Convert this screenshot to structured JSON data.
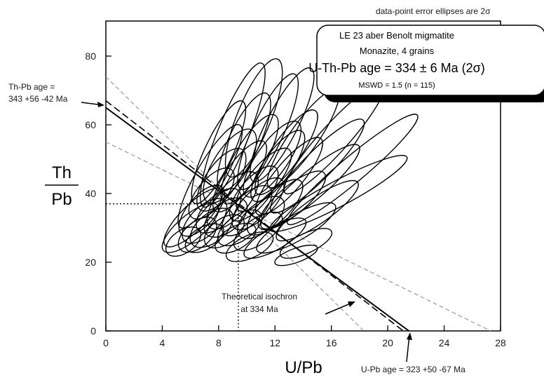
{
  "chart_data": {
    "type": "scatter",
    "title": "",
    "xlabel": "U/Pb",
    "ylabel_numerator": "Th",
    "ylabel_denominator": "Pb",
    "xlim": [
      0,
      28
    ],
    "ylim": [
      0,
      90
    ],
    "x_ticks": [
      0,
      4,
      8,
      12,
      16,
      20,
      24,
      28
    ],
    "y_ticks": [
      0,
      20,
      40,
      60,
      80
    ],
    "grid": false,
    "note": "data-point error ellipses are 2σ",
    "legend": {
      "position": "top-right",
      "line1": "LE 23 aber Benolt migmatite",
      "line2": "Monazite, 4 grains",
      "line3": "U-Th-Pb age = 334 ± 6 Ma (2σ)",
      "line4": "MSWD = 1.5 (n = 115)"
    },
    "annotations": {
      "thpb_age_line1": "Th-Pb age =",
      "thpb_age_line2": "343 +56 -42 Ma",
      "upb_age": "U-Pb age = 323 +50 -67 Ma",
      "isochron_line1": "Theoretical isochron",
      "isochron_line2": "at 334 Ma"
    },
    "isochron_fit": {
      "name": "U-Th-Pb age",
      "y_intercept": 65,
      "x_intercept": 21.5
    },
    "isochron_theoretical": {
      "y_intercept": 67,
      "x_intercept": 21.1
    },
    "error_envelope": [
      {
        "y_intercept": 74,
        "x_intercept": 18.3
      },
      {
        "y_intercept": 55,
        "x_intercept": 27.3
      }
    ],
    "centroid": {
      "x": 9.4,
      "y": 37
    },
    "ellipses": [
      [
        5.5,
        26,
        1.4,
        0.8,
        -35
      ],
      [
        6.5,
        28,
        1.6,
        0.9,
        -40
      ],
      [
        7.0,
        32,
        2.0,
        1.0,
        -45
      ],
      [
        7.5,
        30,
        1.8,
        1.0,
        -40
      ],
      [
        6.8,
        35,
        2.2,
        1.0,
        -50
      ],
      [
        8.0,
        35,
        2.0,
        1.0,
        -45
      ],
      [
        8.5,
        33,
        1.8,
        1.0,
        -40
      ],
      [
        9.0,
        38,
        2.5,
        1.1,
        -50
      ],
      [
        7.5,
        40,
        2.2,
        1.0,
        -50
      ],
      [
        9.5,
        30,
        1.8,
        0.9,
        -35
      ],
      [
        10.0,
        35,
        2.3,
        1.0,
        -45
      ],
      [
        8.2,
        44,
        2.6,
        1.1,
        -55
      ],
      [
        10.5,
        40,
        2.4,
        1.0,
        -50
      ],
      [
        11.0,
        33,
        2.0,
        1.0,
        -40
      ],
      [
        9.2,
        27,
        1.6,
        0.8,
        -30
      ],
      [
        7.0,
        27,
        1.5,
        0.8,
        -30
      ],
      [
        10.8,
        29,
        2.0,
        0.9,
        -35
      ],
      [
        12.0,
        36,
        2.6,
        1.0,
        -45
      ],
      [
        8.8,
        48,
        3.0,
        1.2,
        -58
      ],
      [
        10.2,
        50,
        3.6,
        1.1,
        -60
      ],
      [
        9.8,
        55,
        3.8,
        1.1,
        -65
      ],
      [
        11.5,
        58,
        4.5,
        1.1,
        -65
      ],
      [
        12.5,
        60,
        4.5,
        1.1,
        -63
      ],
      [
        10.5,
        62,
        4.5,
        1.2,
        -68
      ],
      [
        11.8,
        50,
        3.2,
        1.1,
        -55
      ],
      [
        13.0,
        45,
        3.5,
        1.0,
        -50
      ],
      [
        12.8,
        52,
        3.6,
        1.0,
        -55
      ],
      [
        14.5,
        42,
        4.5,
        1.0,
        -40
      ],
      [
        15.0,
        48,
        4.6,
        1.0,
        -45
      ],
      [
        16.5,
        40,
        5.5,
        0.9,
        -28
      ],
      [
        13.5,
        30,
        3.2,
        0.9,
        -30
      ],
      [
        15.0,
        35,
        3.5,
        0.9,
        -35
      ],
      [
        14.0,
        56,
        4.2,
        1.0,
        -55
      ],
      [
        9.0,
        57,
        5.5,
        1.1,
        -68
      ],
      [
        8.0,
        52,
        4.0,
        1.0,
        -65
      ],
      [
        7.4,
        45,
        4.2,
        1.0,
        -60
      ],
      [
        6.2,
        33,
        2.8,
        0.9,
        -45
      ],
      [
        6.0,
        30,
        2.5,
        0.9,
        -40
      ],
      [
        12.0,
        27,
        2.5,
        0.8,
        -30
      ],
      [
        13.2,
        38,
        3.0,
        1.0,
        -40
      ],
      [
        11.2,
        44,
        2.8,
        1.0,
        -50
      ],
      [
        9.5,
        45,
        3.0,
        1.0,
        -55
      ],
      [
        10.2,
        24.5,
        1.8,
        0.8,
        -25
      ],
      [
        14.2,
        25.5,
        2.0,
        0.7,
        -25
      ],
      [
        8.4,
        29,
        1.6,
        0.9,
        -35
      ],
      [
        10.8,
        37,
        2.4,
        1.0,
        -45
      ],
      [
        16.2,
        56,
        5.2,
        1.0,
        -48
      ],
      [
        17.5,
        47,
        6.0,
        0.9,
        -40
      ],
      [
        12.2,
        48,
        3.0,
        1.0,
        -55
      ],
      [
        13.5,
        22,
        1.6,
        0.5,
        -20
      ]
    ]
  }
}
